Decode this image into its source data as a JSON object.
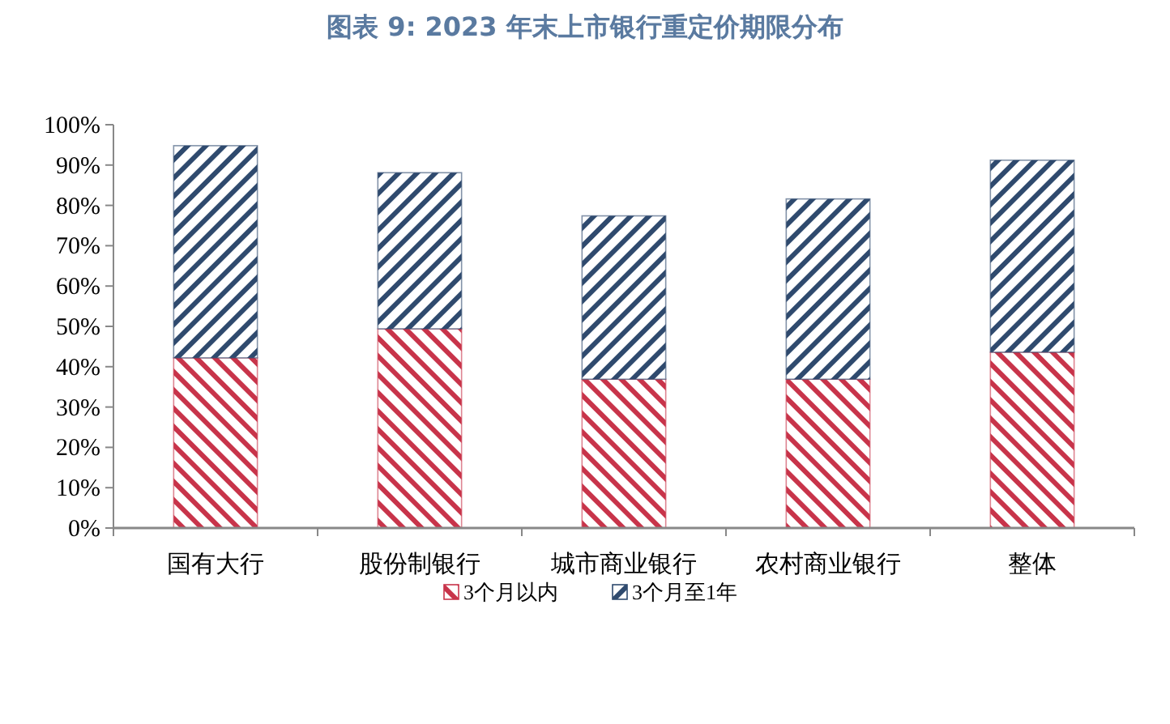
{
  "chart_data": {
    "type": "bar",
    "title": "图表 9: 2023 年末上市银行重定价期限分布",
    "categories": [
      "国有大行",
      "股份制银行",
      "城市商业银行",
      "农村商业银行",
      "整体"
    ],
    "stacked": true,
    "series": [
      {
        "name": "3个月以内",
        "color": "#c8344a",
        "values": [
          42.2,
          49.4,
          36.9,
          36.9,
          43.6
        ]
      },
      {
        "name": "3个月至1年",
        "color": "#2f4a6e",
        "values": [
          52.6,
          38.7,
          40.5,
          44.7,
          47.6
        ]
      }
    ],
    "ylim": [
      0,
      100
    ],
    "yticks": [
      {
        "value": 0,
        "label": "0%"
      },
      {
        "value": 10,
        "label": "10%"
      },
      {
        "value": 20,
        "label": "20%"
      },
      {
        "value": 30,
        "label": "30%"
      },
      {
        "value": 40,
        "label": "40%"
      },
      {
        "value": 50,
        "label": "50%"
      },
      {
        "value": 60,
        "label": "60%"
      },
      {
        "value": 70,
        "label": "70%"
      },
      {
        "value": 80,
        "label": "80%"
      },
      {
        "value": 90,
        "label": "90%"
      },
      {
        "value": 100,
        "label": "100%"
      }
    ],
    "legend": "bottom",
    "grid": false
  }
}
